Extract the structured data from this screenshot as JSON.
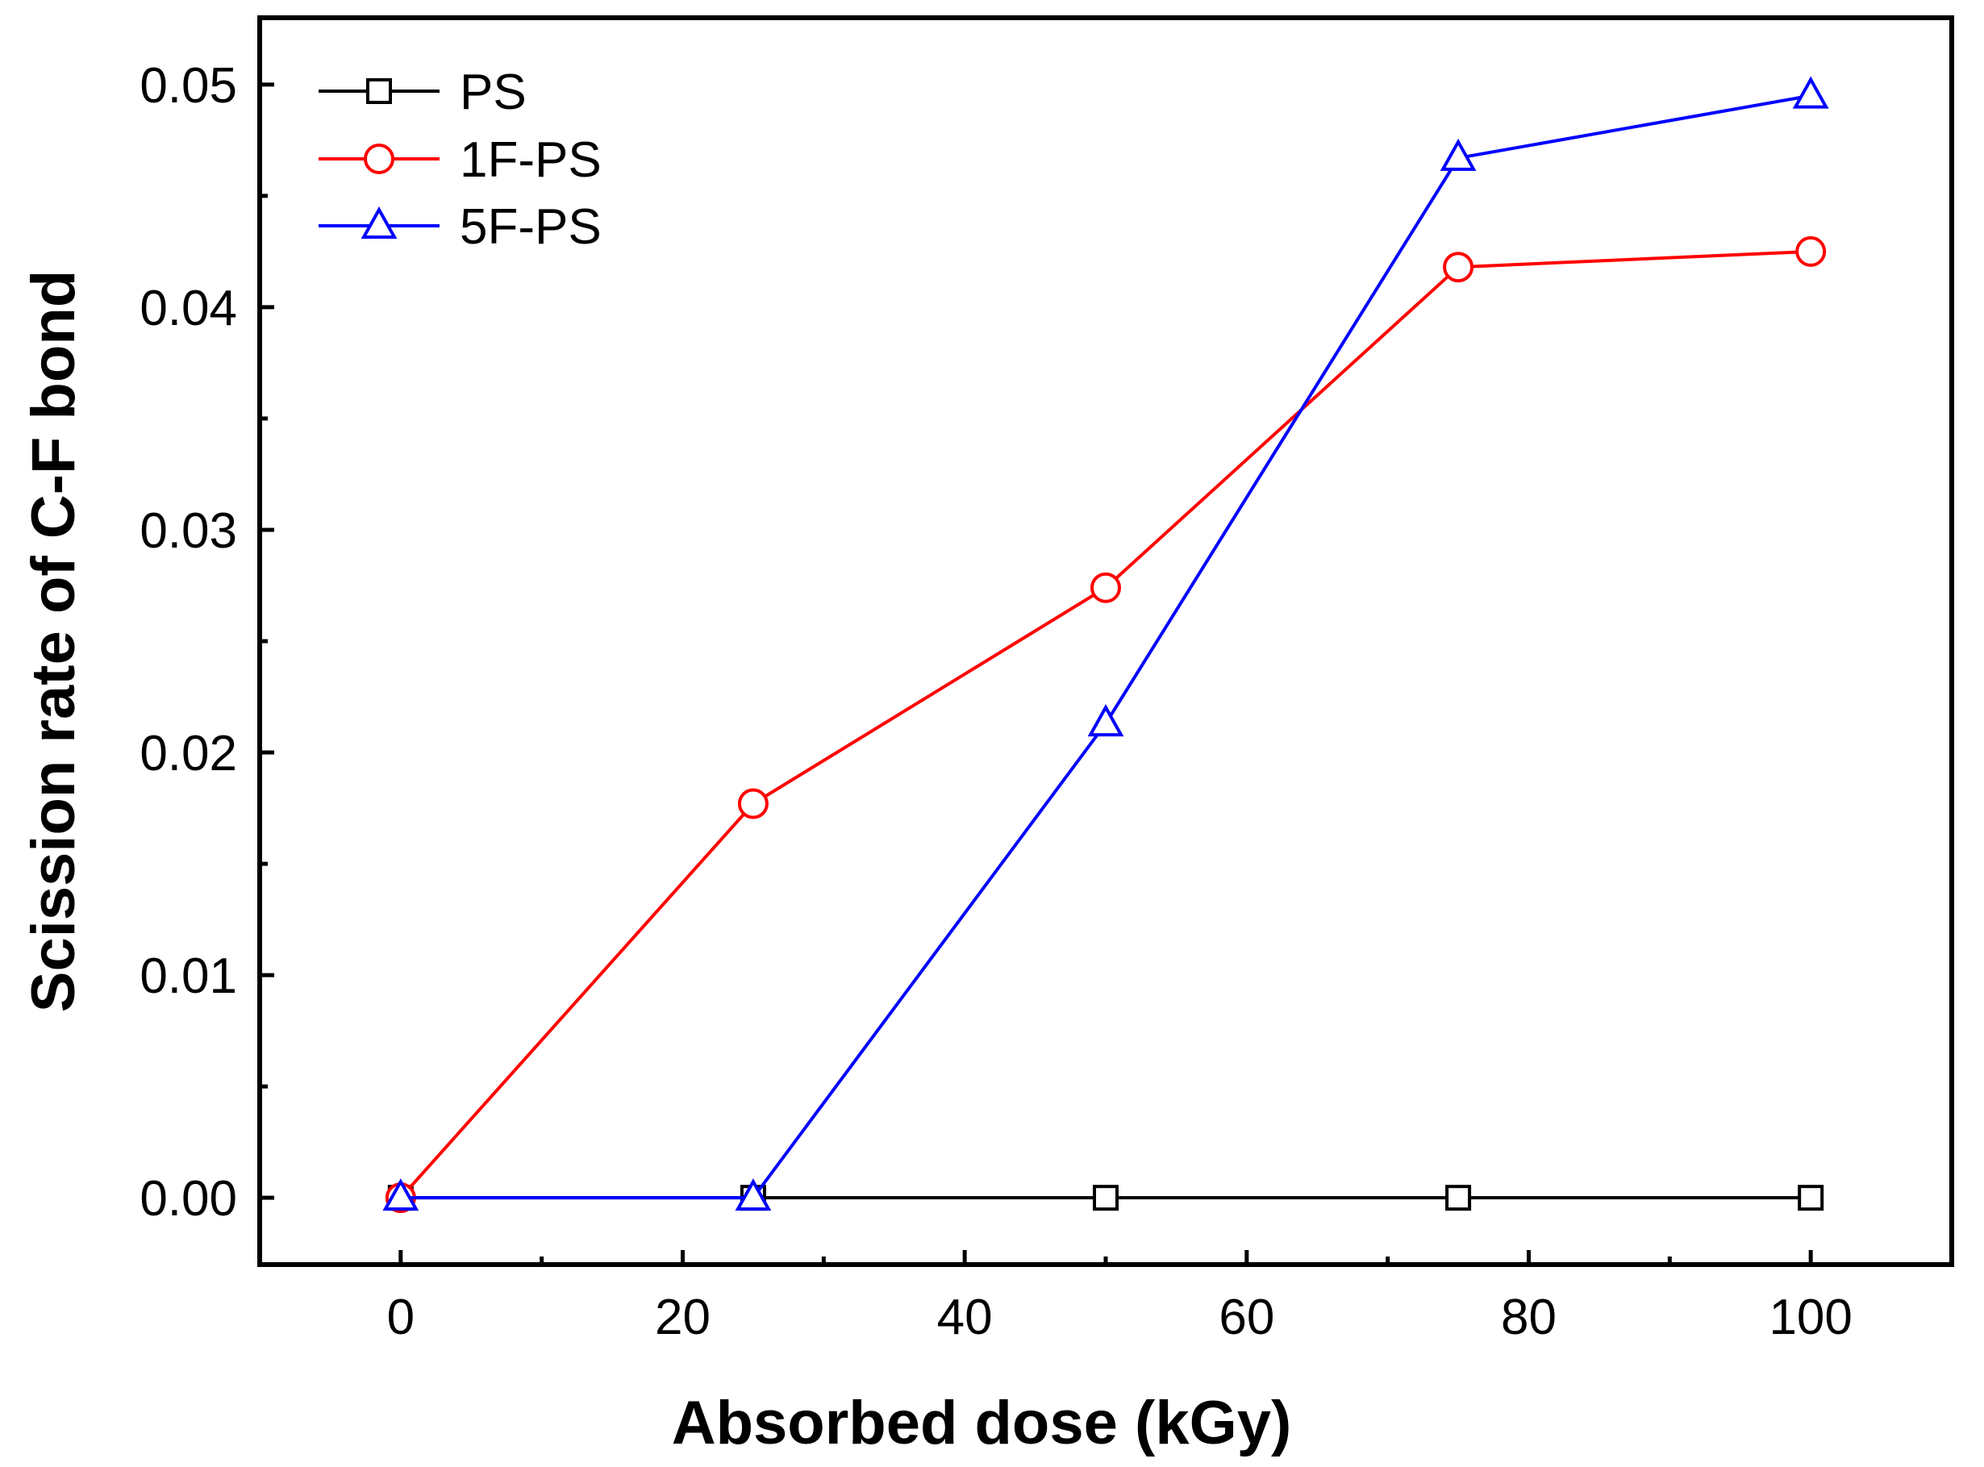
{
  "chart_data": {
    "type": "line",
    "title": "",
    "xlabel": "Absorbed dose (kGy)",
    "ylabel": "Scission rate of C-F bond",
    "xlim": [
      -10,
      110
    ],
    "ylim": [
      -0.003,
      0.053
    ],
    "xticks": [
      0,
      20,
      40,
      60,
      80,
      100
    ],
    "xtick_labels": [
      "0",
      "20",
      "40",
      "60",
      "80",
      "100"
    ],
    "xminor": [
      10,
      30,
      50,
      70,
      90
    ],
    "yticks": [
      0.0,
      0.01,
      0.02,
      0.03,
      0.04,
      0.05
    ],
    "ytick_labels": [
      "0.00",
      "0.01",
      "0.02",
      "0.03",
      "0.04",
      "0.05"
    ],
    "yminor": [
      0.005,
      0.015,
      0.025,
      0.035,
      0.045
    ],
    "grid": false,
    "legend_position": "top-left",
    "x": [
      0,
      25,
      50,
      75,
      100
    ],
    "series": [
      {
        "name": "PS",
        "color": "#000000",
        "marker": "square",
        "values": [
          0.0,
          0.0,
          0.0,
          0.0,
          0.0
        ]
      },
      {
        "name": "1F-PS",
        "color": "#ff0000",
        "marker": "circle",
        "values": [
          0.0,
          0.0177,
          0.0274,
          0.0418,
          0.0425
        ]
      },
      {
        "name": "5F-PS",
        "color": "#0000ff",
        "marker": "triangle",
        "values": [
          0.0,
          0.0,
          0.0213,
          0.0467,
          0.0495
        ]
      }
    ]
  }
}
